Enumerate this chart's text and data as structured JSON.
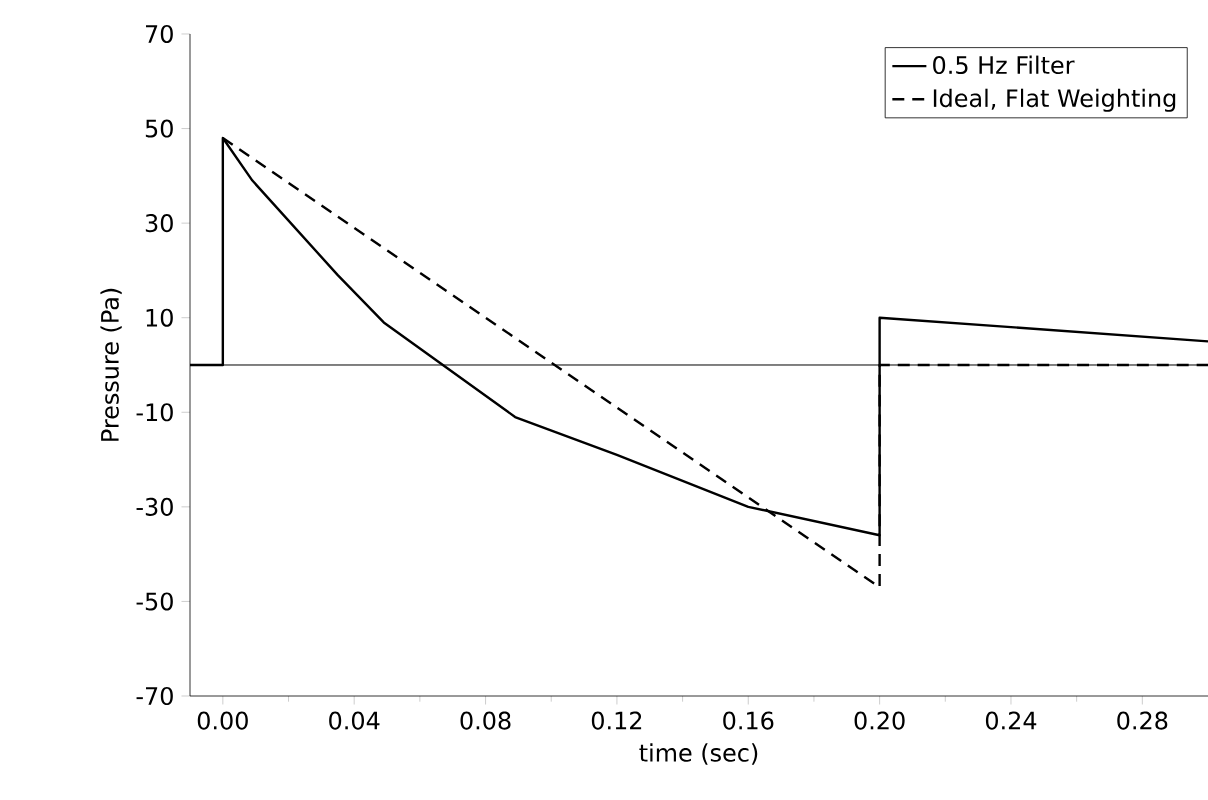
{
  "chart_data": {
    "type": "line",
    "xlabel": "time (sec)",
    "ylabel": "Pressure (Pa)",
    "xlim": [
      -0.01,
      0.3
    ],
    "ylim": [
      -70,
      70
    ],
    "xticks": [
      {
        "value": 0,
        "label": "0.00"
      },
      {
        "value": 0.04,
        "label": "0.04"
      },
      {
        "value": 0.08,
        "label": "0.08"
      },
      {
        "value": 0.12,
        "label": "0.12"
      },
      {
        "value": 0.16,
        "label": "0.16"
      },
      {
        "value": 0.2,
        "label": "0.20"
      },
      {
        "value": 0.24,
        "label": "0.24"
      },
      {
        "value": 0.28,
        "label": "0.28"
      }
    ],
    "yticks": [
      70,
      50,
      30,
      10,
      -10,
      -30,
      -50,
      -70
    ],
    "legend": "top right",
    "grid": false,
    "marker": "none",
    "ref_lines": [
      {
        "axis": "y",
        "value": 0
      }
    ],
    "series": [
      {
        "name": "0.5 Hz Filter",
        "color": "#000000",
        "line_style": "solid",
        "x": [
          -0.01,
          0,
          0,
          0.009,
          0.035,
          0.049,
          0.067,
          0.089,
          0.12,
          0.16,
          0.2,
          0.2,
          0.3
        ],
        "values": [
          0,
          0,
          48,
          39,
          19,
          9,
          0,
          -11,
          -19,
          -30,
          -36,
          10,
          5
        ]
      },
      {
        "name": "Ideal, Flat Weighting",
        "color": "#000000",
        "line_style": "dashed",
        "x": [
          0,
          0.2,
          0.2,
          0.3
        ],
        "values": [
          48,
          -47,
          0,
          0
        ]
      }
    ]
  }
}
